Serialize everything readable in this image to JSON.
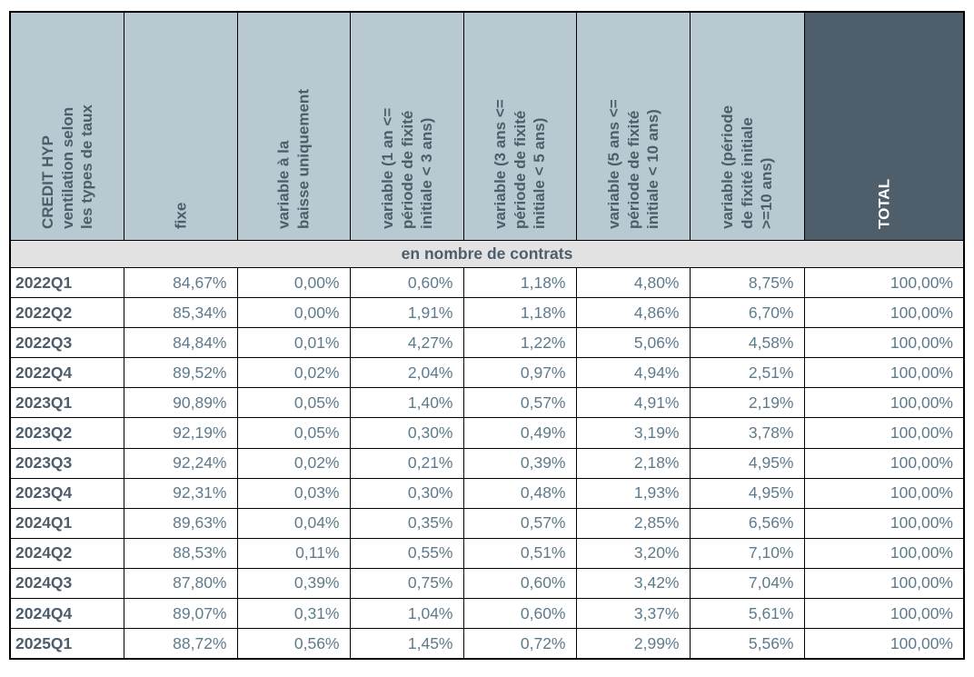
{
  "table": {
    "corner_header": "CREDIT HYP\nventilation selon\nles types de taux",
    "col_headers": [
      "fixe",
      "variable à la\nbaisse uniquement",
      "variable (1 an <=\npériode de fixité\ninitiale < 3 ans)",
      "variable (3 ans <=\npériode de fixité\ninitiale < 5 ans)",
      "variable (5 ans <=\npériode de fixité\ninitiale < 10 ans)",
      "variable (période\nde fixité initiale\n>=10 ans)",
      "TOTAL"
    ],
    "subheader": "en nombre de contrats",
    "rows": [
      {
        "label": "2022Q1",
        "values": [
          "84,67%",
          "0,00%",
          "0,60%",
          "1,18%",
          "4,80%",
          "8,75%",
          "100,00%"
        ]
      },
      {
        "label": "2022Q2",
        "values": [
          "85,34%",
          "0,00%",
          "1,91%",
          "1,18%",
          "4,86%",
          "6,70%",
          "100,00%"
        ]
      },
      {
        "label": "2022Q3",
        "values": [
          "84,84%",
          "0,01%",
          "4,27%",
          "1,22%",
          "5,06%",
          "4,58%",
          "100,00%"
        ]
      },
      {
        "label": "2022Q4",
        "values": [
          "89,52%",
          "0,02%",
          "2,04%",
          "0,97%",
          "4,94%",
          "2,51%",
          "100,00%"
        ]
      },
      {
        "label": "2023Q1",
        "values": [
          "90,89%",
          "0,05%",
          "1,40%",
          "0,57%",
          "4,91%",
          "2,19%",
          "100,00%"
        ]
      },
      {
        "label": "2023Q2",
        "values": [
          "92,19%",
          "0,05%",
          "0,30%",
          "0,49%",
          "3,19%",
          "3,78%",
          "100,00%"
        ]
      },
      {
        "label": "2023Q3",
        "values": [
          "92,24%",
          "0,02%",
          "0,21%",
          "0,39%",
          "2,18%",
          "4,95%",
          "100,00%"
        ]
      },
      {
        "label": "2023Q4",
        "values": [
          "92,31%",
          "0,03%",
          "0,30%",
          "0,48%",
          "1,93%",
          "4,95%",
          "100,00%"
        ]
      },
      {
        "label": "2024Q1",
        "values": [
          "89,63%",
          "0,04%",
          "0,35%",
          "0,57%",
          "2,85%",
          "6,56%",
          "100,00%"
        ]
      },
      {
        "label": "2024Q2",
        "values": [
          "88,53%",
          "0,11%",
          "0,55%",
          "0,51%",
          "3,20%",
          "7,10%",
          "100,00%"
        ]
      },
      {
        "label": "2024Q3",
        "values": [
          "87,80%",
          "0,39%",
          "0,75%",
          "0,60%",
          "3,42%",
          "7,04%",
          "100,00%"
        ]
      },
      {
        "label": "2024Q4",
        "values": [
          "89,07%",
          "0,31%",
          "1,04%",
          "0,60%",
          "3,37%",
          "5,61%",
          "100,00%"
        ]
      },
      {
        "label": "2025Q1",
        "values": [
          "88,72%",
          "0,56%",
          "1,45%",
          "0,72%",
          "2,99%",
          "5,56%",
          "100,00%"
        ]
      }
    ]
  },
  "colors": {
    "header_bg": "#b8c9d1",
    "total_header_bg": "#4e5e6b",
    "header_text": "#4d5d6b",
    "unit_row_bg": "#e2e2e2",
    "row_label_text": "#4d5d6b",
    "value_text": "#5e7b8c",
    "total_header_text": "#ffffff",
    "grid_border": "#000000"
  },
  "chart_data": {
    "type": "table",
    "title": "CREDIT HYP ventilation selon les types de taux",
    "unit_label": "en nombre de contrats",
    "columns": [
      "fixe",
      "variable à la baisse uniquement",
      "variable (1 an <= période de fixité initiale < 3 ans)",
      "variable (3 ans <= période de fixité initiale < 5 ans)",
      "variable (5 ans <= période de fixité initiale < 10 ans)",
      "variable (période de fixité initiale >=10 ans)",
      "TOTAL"
    ],
    "categories": [
      "2022Q1",
      "2022Q2",
      "2022Q3",
      "2022Q4",
      "2023Q1",
      "2023Q2",
      "2023Q3",
      "2023Q4",
      "2024Q1",
      "2024Q2",
      "2024Q3",
      "2024Q4",
      "2025Q1"
    ],
    "values_pct": [
      [
        84.67,
        0.0,
        0.6,
        1.18,
        4.8,
        8.75,
        100.0
      ],
      [
        85.34,
        0.0,
        1.91,
        1.18,
        4.86,
        6.7,
        100.0
      ],
      [
        84.84,
        0.01,
        4.27,
        1.22,
        5.06,
        4.58,
        100.0
      ],
      [
        89.52,
        0.02,
        2.04,
        0.97,
        4.94,
        2.51,
        100.0
      ],
      [
        90.89,
        0.05,
        1.4,
        0.57,
        4.91,
        2.19,
        100.0
      ],
      [
        92.19,
        0.05,
        0.3,
        0.49,
        3.19,
        3.78,
        100.0
      ],
      [
        92.24,
        0.02,
        0.21,
        0.39,
        2.18,
        4.95,
        100.0
      ],
      [
        92.31,
        0.03,
        0.3,
        0.48,
        1.93,
        4.95,
        100.0
      ],
      [
        89.63,
        0.04,
        0.35,
        0.57,
        2.85,
        6.56,
        100.0
      ],
      [
        88.53,
        0.11,
        0.55,
        0.51,
        3.2,
        7.1,
        100.0
      ],
      [
        87.8,
        0.39,
        0.75,
        0.6,
        3.42,
        7.04,
        100.0
      ],
      [
        89.07,
        0.31,
        1.04,
        0.6,
        3.37,
        5.61,
        100.0
      ],
      [
        88.72,
        0.56,
        1.45,
        0.72,
        2.99,
        5.56,
        100.0
      ]
    ]
  }
}
